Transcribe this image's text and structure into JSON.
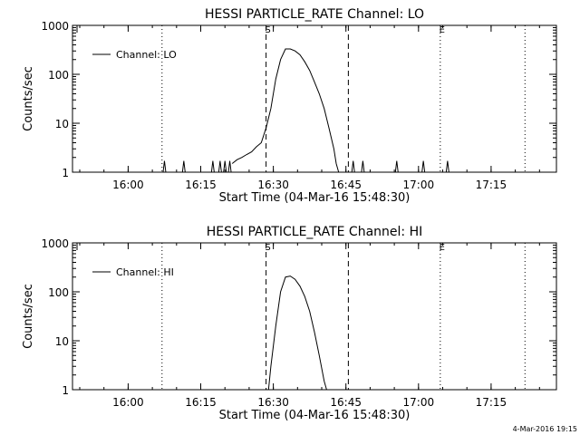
{
  "footer": {
    "timestamp": "4-Mar-2016 19:15"
  },
  "chart_data": [
    {
      "type": "line",
      "title": "HESSI PARTICLE_RATE Channel: LO",
      "xlabel": "Start Time (04-Mar-16 15:48:30)",
      "ylabel": "Counts/sec",
      "y_scale": "log",
      "x_units": "minutes after 15:48:30",
      "xlim": [
        0,
        100
      ],
      "ylim": [
        1,
        1000
      ],
      "x_ticks": [
        {
          "value": 11.5,
          "label": "16:00"
        },
        {
          "value": 26.5,
          "label": "16:15"
        },
        {
          "value": 41.5,
          "label": "16:30"
        },
        {
          "value": 56.5,
          "label": "16:45"
        },
        {
          "value": 71.5,
          "label": "17:00"
        },
        {
          "value": 86.5,
          "label": "17:15"
        }
      ],
      "y_ticks": [
        {
          "value": 1,
          "label": "1"
        },
        {
          "value": 10,
          "label": "10"
        },
        {
          "value": 100,
          "label": "100"
        },
        {
          "value": 1000,
          "label": "1000"
        }
      ],
      "legend": {
        "label": "Channel: LO",
        "position": "top-left"
      },
      "markers": [
        {
          "x": 18.5,
          "style": "dotted",
          "label": ""
        },
        {
          "x": 40.0,
          "style": "dashed",
          "label": "S"
        },
        {
          "x": 57.0,
          "style": "dashed",
          "label": ""
        },
        {
          "x": 76.0,
          "style": "dotted",
          "label": "E"
        },
        {
          "x": 93.5,
          "style": "dotted",
          "label": ""
        }
      ],
      "spikes": [
        {
          "x": 19.0,
          "y": 1.7
        },
        {
          "x": 23.0,
          "y": 1.7
        },
        {
          "x": 29.0,
          "y": 1.7
        },
        {
          "x": 30.5,
          "y": 1.7
        },
        {
          "x": 31.5,
          "y": 1.7
        },
        {
          "x": 32.5,
          "y": 1.7
        },
        {
          "x": 58.0,
          "y": 1.7
        },
        {
          "x": 60.0,
          "y": 1.7
        },
        {
          "x": 67.0,
          "y": 1.7
        },
        {
          "x": 72.5,
          "y": 1.7
        },
        {
          "x": 77.5,
          "y": 1.7
        }
      ],
      "series": [
        {
          "name": "Channel: LO",
          "x": [
            33.0,
            34.0,
            35.0,
            36.0,
            37.0,
            38.0,
            39.0,
            40.0,
            41.0,
            42.0,
            43.0,
            44.0,
            45.0,
            46.0,
            47.0,
            48.0,
            49.0,
            50.0,
            51.0,
            52.0,
            53.0,
            54.0,
            54.5,
            55.0
          ],
          "y": [
            1.5,
            1.8,
            2.0,
            2.3,
            2.6,
            3.3,
            4.0,
            8.0,
            20,
            80,
            200,
            330,
            330,
            300,
            250,
            180,
            120,
            70,
            40,
            20,
            8,
            3,
            1.5,
            1.0
          ]
        }
      ]
    },
    {
      "type": "line",
      "title": "HESSI PARTICLE_RATE Channel: HI",
      "xlabel": "Start Time (04-Mar-16 15:48:30)",
      "ylabel": "Counts/sec",
      "y_scale": "log",
      "x_units": "minutes after 15:48:30",
      "xlim": [
        0,
        100
      ],
      "ylim": [
        1,
        1000
      ],
      "x_ticks": [
        {
          "value": 11.5,
          "label": "16:00"
        },
        {
          "value": 26.5,
          "label": "16:15"
        },
        {
          "value": 41.5,
          "label": "16:30"
        },
        {
          "value": 56.5,
          "label": "16:45"
        },
        {
          "value": 71.5,
          "label": "17:00"
        },
        {
          "value": 86.5,
          "label": "17:15"
        }
      ],
      "y_ticks": [
        {
          "value": 1,
          "label": "1"
        },
        {
          "value": 10,
          "label": "10"
        },
        {
          "value": 100,
          "label": "100"
        },
        {
          "value": 1000,
          "label": "1000"
        }
      ],
      "legend": {
        "label": "Channel: HI",
        "position": "top-left"
      },
      "markers": [
        {
          "x": 18.5,
          "style": "dotted",
          "label": ""
        },
        {
          "x": 40.0,
          "style": "dashed",
          "label": "S"
        },
        {
          "x": 57.0,
          "style": "dashed",
          "label": ""
        },
        {
          "x": 76.0,
          "style": "dotted",
          "label": "E"
        },
        {
          "x": 93.5,
          "style": "dotted",
          "label": ""
        }
      ],
      "spikes": [],
      "series": [
        {
          "name": "Channel: HI",
          "x": [
            40.5,
            41.0,
            42.0,
            43.0,
            44.0,
            45.0,
            46.0,
            47.0,
            48.0,
            49.0,
            50.0,
            51.0,
            52.0,
            52.5
          ],
          "y": [
            1.0,
            3.0,
            20,
            100,
            200,
            210,
            180,
            130,
            80,
            40,
            15,
            5,
            1.5,
            1.0
          ]
        }
      ]
    }
  ]
}
